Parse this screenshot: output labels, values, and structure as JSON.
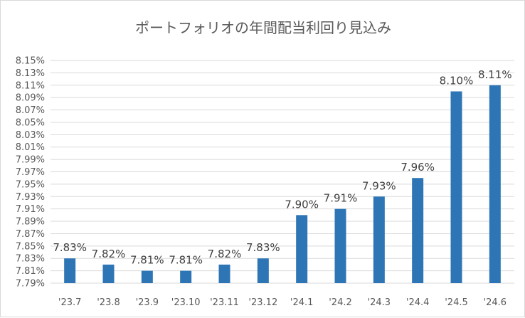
{
  "chart_data": {
    "type": "bar",
    "title": "ポートフォリオの年間配当利回り見込み",
    "categories": [
      "'23.7",
      "'23.8",
      "'23.9",
      "'23.10",
      "'23.11",
      "'23.12",
      "'24.1",
      "'24.2",
      "'24.3",
      "'24.4",
      "'24.5",
      "'24.6"
    ],
    "values": [
      7.83,
      7.82,
      7.81,
      7.81,
      7.82,
      7.83,
      7.9,
      7.91,
      7.93,
      7.96,
      8.1,
      8.11
    ],
    "data_labels": [
      "7.83%",
      "7.82%",
      "7.81%",
      "7.81%",
      "7.82%",
      "7.83%",
      "7.90%",
      "7.91%",
      "7.93%",
      "7.96%",
      "8.10%",
      "8.11%"
    ],
    "y_ticks": [
      "7.79%",
      "7.81%",
      "7.83%",
      "7.85%",
      "7.87%",
      "7.89%",
      "7.91%",
      "7.93%",
      "7.95%",
      "7.97%",
      "7.99%",
      "8.01%",
      "8.03%",
      "8.05%",
      "8.07%",
      "8.09%",
      "8.11%",
      "8.13%",
      "8.15%"
    ],
    "ylim": [
      7.79,
      8.15
    ],
    "y_step": 0.02,
    "grid": true,
    "legend": "none",
    "xlabel": "",
    "ylabel": "",
    "bar_color": "#2e75b6",
    "grid_color": "#d9d9d9"
  }
}
